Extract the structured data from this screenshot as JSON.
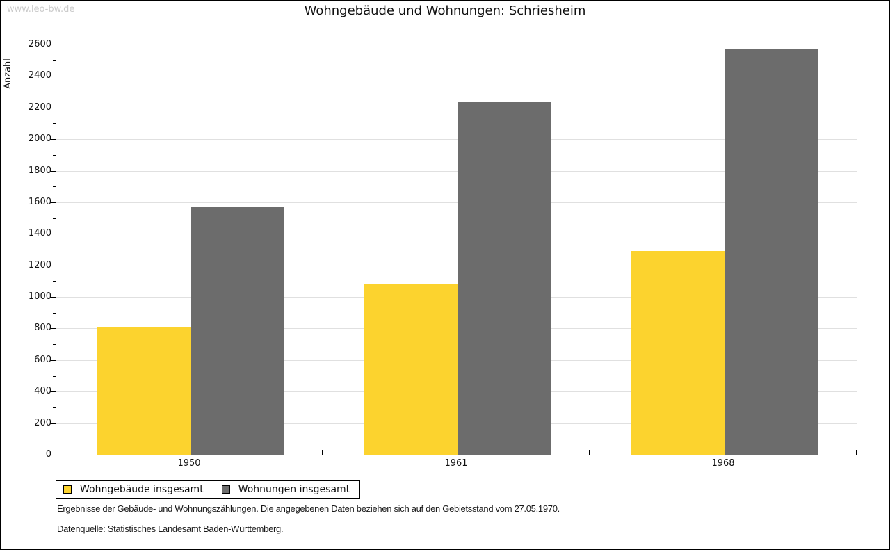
{
  "watermark": "www.leo-bw.de",
  "chart_data": {
    "type": "bar",
    "title": "Wohngebäude und Wohnungen: Schriesheim",
    "ylabel": "Anzahl",
    "xlabel": "",
    "categories": [
      "1950",
      "1961",
      "1968"
    ],
    "series": [
      {
        "name": "Wohngebäude insgesamt",
        "color": "#FCD32E",
        "values": [
          810,
          1080,
          1290
        ]
      },
      {
        "name": "Wohnungen insgesamt",
        "color": "#6C6C6C",
        "values": [
          1570,
          2235,
          2570
        ]
      }
    ],
    "ylim": [
      0,
      2600
    ],
    "ytick_step": 200,
    "yminor_step": 100,
    "grid": true,
    "legend_position": "bottom-left"
  },
  "footer": {
    "line1": "Ergebnisse der Gebäude- und Wohnungszählungen. Die angegebenen Daten beziehen sich auf den Gebietsstand vom 27.05.1970.",
    "line2": "Datenquelle: Statistisches Landesamt Baden-Württemberg."
  },
  "colors": {
    "gridline": "#E0E0E0",
    "axis": "#000000",
    "watermark": "#CBCBCB",
    "background": "#FFFFFF"
  }
}
